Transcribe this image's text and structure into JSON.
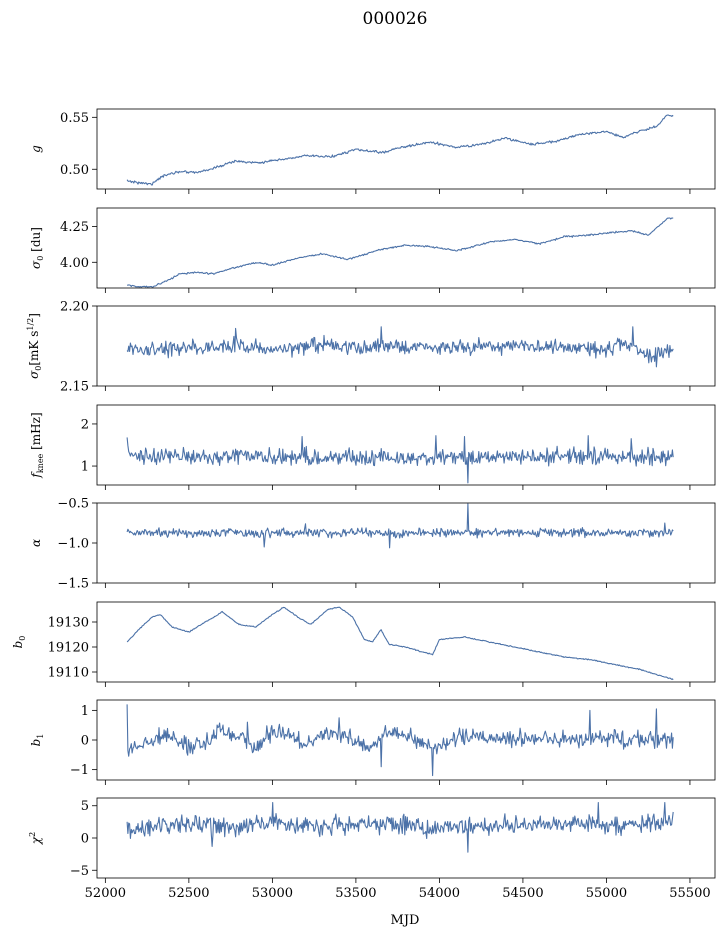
{
  "figure": {
    "title": "000026",
    "xlabel": "MJD"
  },
  "colors": {
    "series": "#4c72a8",
    "axes": "#000000",
    "background": "#ffffff"
  },
  "chart_data": [
    {
      "type": "line",
      "ylabel": "g",
      "xlim": [
        51950,
        55650
      ],
      "ylim": [
        0.481,
        0.558
      ],
      "yticks": [
        0.5,
        0.55
      ],
      "ytick_labels": [
        "0.50",
        "0.55"
      ],
      "show_xtick_labels": false,
      "x_start": 52130,
      "x_end": 55400,
      "knots": [
        [
          52130,
          0.489
        ],
        [
          52200,
          0.487
        ],
        [
          52280,
          0.486
        ],
        [
          52350,
          0.494
        ],
        [
          52450,
          0.498
        ],
        [
          52550,
          0.497
        ],
        [
          52650,
          0.501
        ],
        [
          52780,
          0.508
        ],
        [
          52900,
          0.506
        ],
        [
          53050,
          0.509
        ],
        [
          53200,
          0.513
        ],
        [
          53350,
          0.512
        ],
        [
          53500,
          0.519
        ],
        [
          53650,
          0.516
        ],
        [
          53800,
          0.522
        ],
        [
          53950,
          0.526
        ],
        [
          54100,
          0.521
        ],
        [
          54250,
          0.524
        ],
        [
          54400,
          0.53
        ],
        [
          54550,
          0.524
        ],
        [
          54700,
          0.527
        ],
        [
          54850,
          0.534
        ],
        [
          55000,
          0.536
        ],
        [
          55100,
          0.531
        ],
        [
          55200,
          0.537
        ],
        [
          55300,
          0.541
        ],
        [
          55360,
          0.552
        ],
        [
          55400,
          0.551
        ]
      ],
      "noise": 0.0008,
      "spikes": []
    },
    {
      "type": "line",
      "ylabel": "σ0 [du]",
      "xlim": [
        51950,
        55650
      ],
      "ylim": [
        3.82,
        4.38
      ],
      "yticks": [
        4.0,
        4.25
      ],
      "ytick_labels": [
        "4.00",
        "4.25"
      ],
      "show_xtick_labels": false,
      "x_start": 52130,
      "x_end": 55400,
      "knots": [
        [
          52130,
          3.84
        ],
        [
          52200,
          3.83
        ],
        [
          52280,
          3.83
        ],
        [
          52350,
          3.86
        ],
        [
          52450,
          3.92
        ],
        [
          52550,
          3.93
        ],
        [
          52650,
          3.92
        ],
        [
          52800,
          3.97
        ],
        [
          52900,
          4.0
        ],
        [
          53000,
          3.98
        ],
        [
          53150,
          4.03
        ],
        [
          53300,
          4.06
        ],
        [
          53450,
          4.02
        ],
        [
          53650,
          4.09
        ],
        [
          53800,
          4.12
        ],
        [
          53950,
          4.11
        ],
        [
          54100,
          4.08
        ],
        [
          54300,
          4.14
        ],
        [
          54450,
          4.16
        ],
        [
          54600,
          4.13
        ],
        [
          54750,
          4.18
        ],
        [
          54900,
          4.19
        ],
        [
          55050,
          4.21
        ],
        [
          55150,
          4.22
        ],
        [
          55250,
          4.19
        ],
        [
          55330,
          4.27
        ],
        [
          55370,
          4.31
        ],
        [
          55400,
          4.31
        ]
      ],
      "noise": 0.004,
      "spikes": []
    },
    {
      "type": "line",
      "ylabel": "σ0[mK s1/2]",
      "xlim": [
        51950,
        55650
      ],
      "ylim": [
        2.15,
        2.2
      ],
      "yticks": [
        2.15,
        2.2
      ],
      "ytick_labels": [
        "2.15",
        "2.20"
      ],
      "show_xtick_labels": false,
      "x_start": 52130,
      "x_end": 55400,
      "knots": [
        [
          52130,
          2.172
        ],
        [
          52400,
          2.173
        ],
        [
          52700,
          2.176
        ],
        [
          53000,
          2.173
        ],
        [
          53300,
          2.176
        ],
        [
          53600,
          2.174
        ],
        [
          53900,
          2.175
        ],
        [
          54200,
          2.174
        ],
        [
          54500,
          2.175
        ],
        [
          54800,
          2.174
        ],
        [
          55000,
          2.173
        ],
        [
          55100,
          2.177
        ],
        [
          55250,
          2.169
        ],
        [
          55400,
          2.172
        ]
      ],
      "noise": 0.0032,
      "spikes": [
        [
          52780,
          2.186
        ],
        [
          53650,
          2.187
        ],
        [
          55160,
          2.187
        ],
        [
          55300,
          2.162
        ]
      ]
    },
    {
      "type": "line",
      "ylabel": "fknee [mHz]",
      "xlim": [
        51950,
        55650
      ],
      "ylim": [
        0.55,
        2.45
      ],
      "yticks": [
        1,
        2
      ],
      "ytick_labels": [
        "1",
        "2"
      ],
      "show_xtick_labels": false,
      "x_start": 52130,
      "x_end": 55400,
      "knots": [
        [
          52130,
          1.25
        ],
        [
          52800,
          1.22
        ],
        [
          53500,
          1.2
        ],
        [
          54200,
          1.21
        ],
        [
          54900,
          1.23
        ],
        [
          55400,
          1.2
        ]
      ],
      "noise": 0.14,
      "spikes": [
        [
          52130,
          1.68
        ],
        [
          53180,
          1.7
        ],
        [
          53980,
          1.72
        ],
        [
          54170,
          0.6
        ],
        [
          54150,
          1.7
        ],
        [
          54890,
          1.72
        ],
        [
          55150,
          1.65
        ]
      ]
    },
    {
      "type": "line",
      "ylabel": "α",
      "xlim": [
        51950,
        55650
      ],
      "ylim": [
        -1.5,
        -0.5
      ],
      "yticks": [
        -1.5,
        -1.0,
        -0.5
      ],
      "ytick_labels": [
        "−1.5",
        "−1.0",
        "−0.5"
      ],
      "show_xtick_labels": false,
      "x_start": 52130,
      "x_end": 55400,
      "knots": [
        [
          52130,
          -0.88
        ],
        [
          52800,
          -0.87
        ],
        [
          53500,
          -0.88
        ],
        [
          54200,
          -0.87
        ],
        [
          54900,
          -0.87
        ],
        [
          55400,
          -0.88
        ]
      ],
      "noise": 0.04,
      "spikes": [
        [
          54170,
          -0.51
        ],
        [
          53200,
          -0.76
        ],
        [
          53700,
          -1.06
        ],
        [
          52950,
          -1.05
        ],
        [
          55350,
          -0.75
        ]
      ]
    },
    {
      "type": "line",
      "ylabel": "b0",
      "xlim": [
        51950,
        55650
      ],
      "ylim": [
        19106,
        19138
      ],
      "yticks": [
        19110,
        19120,
        19130
      ],
      "ytick_labels": [
        "19110",
        "19120",
        "19130"
      ],
      "show_xtick_labels": false,
      "x_start": 52130,
      "x_end": 55400,
      "knots": [
        [
          52130,
          19122
        ],
        [
          52200,
          19127
        ],
        [
          52280,
          19132
        ],
        [
          52330,
          19133
        ],
        [
          52400,
          19128
        ],
        [
          52500,
          19126
        ],
        [
          52600,
          19130
        ],
        [
          52700,
          19134
        ],
        [
          52800,
          19129
        ],
        [
          52900,
          19128
        ],
        [
          53000,
          19133
        ],
        [
          53070,
          19136
        ],
        [
          53150,
          19132
        ],
        [
          53230,
          19129
        ],
        [
          53330,
          19135
        ],
        [
          53400,
          19136
        ],
        [
          53480,
          19132
        ],
        [
          53550,
          19123
        ],
        [
          53600,
          19122
        ],
        [
          53650,
          19127
        ],
        [
          53700,
          19121
        ],
        [
          53800,
          19120
        ],
        [
          53900,
          19118
        ],
        [
          53960,
          19117
        ],
        [
          54000,
          19123
        ],
        [
          54150,
          19124
        ],
        [
          54300,
          19122
        ],
        [
          54450,
          19120
        ],
        [
          54600,
          19118
        ],
        [
          54750,
          19116
        ],
        [
          54900,
          19115
        ],
        [
          55050,
          19113
        ],
        [
          55200,
          19111
        ],
        [
          55300,
          19109
        ],
        [
          55400,
          19107
        ]
      ],
      "noise": 0.15,
      "spikes": []
    },
    {
      "type": "line",
      "ylabel": "b1",
      "xlim": [
        51950,
        55650
      ],
      "ylim": [
        -1.35,
        1.35
      ],
      "yticks": [
        -1,
        0,
        1
      ],
      "ytick_labels": [
        "−1",
        "0",
        "1"
      ],
      "show_xtick_labels": false,
      "x_start": 52130,
      "x_end": 55400,
      "knots": [
        [
          52130,
          -0.3
        ],
        [
          52200,
          -0.2
        ],
        [
          52300,
          0.1
        ],
        [
          52400,
          0.15
        ],
        [
          52500,
          -0.2
        ],
        [
          52600,
          -0.1
        ],
        [
          52700,
          0.35
        ],
        [
          52800,
          0.1
        ],
        [
          52900,
          -0.25
        ],
        [
          53000,
          0.3
        ],
        [
          53100,
          0.2
        ],
        [
          53200,
          -0.2
        ],
        [
          53300,
          0.25
        ],
        [
          53400,
          0.2
        ],
        [
          53500,
          0.0
        ],
        [
          53600,
          -0.3
        ],
        [
          53700,
          0.3
        ],
        [
          53800,
          0.1
        ],
        [
          53900,
          -0.1
        ],
        [
          54000,
          -0.2
        ],
        [
          54100,
          0.1
        ],
        [
          54300,
          0.1
        ],
        [
          54500,
          0.05
        ],
        [
          54700,
          0.05
        ],
        [
          54900,
          0.0
        ],
        [
          55100,
          0.05
        ],
        [
          55300,
          0.0
        ],
        [
          55400,
          0.05
        ]
      ],
      "noise": 0.2,
      "spikes": [
        [
          52130,
          1.2
        ],
        [
          53960,
          -1.2
        ],
        [
          53650,
          -0.9
        ],
        [
          54900,
          1.0
        ],
        [
          55300,
          1.05
        ],
        [
          52850,
          0.6
        ],
        [
          53400,
          0.75
        ]
      ]
    },
    {
      "type": "line",
      "ylabel": "χ2",
      "xlim": [
        51950,
        55650
      ],
      "ylim": [
        -6.2,
        6.2
      ],
      "yticks": [
        -5,
        0,
        5
      ],
      "ytick_labels": [
        "−5",
        "0",
        "5"
      ],
      "show_xtick_labels": true,
      "xticks": [
        52000,
        52500,
        53000,
        53500,
        54000,
        54500,
        55000,
        55500
      ],
      "xtick_labels": [
        "52000",
        "52500",
        "53000",
        "53500",
        "54000",
        "54500",
        "55000",
        "55500"
      ],
      "x_start": 52130,
      "x_end": 55400,
      "knots": [
        [
          52130,
          1.5
        ],
        [
          52400,
          2.2
        ],
        [
          52700,
          1.8
        ],
        [
          53000,
          2.2
        ],
        [
          53300,
          1.8
        ],
        [
          53600,
          2.3
        ],
        [
          53900,
          1.7
        ],
        [
          54200,
          1.8
        ],
        [
          54500,
          2.2
        ],
        [
          54800,
          1.9
        ],
        [
          55100,
          2.1
        ],
        [
          55400,
          2.5
        ]
      ],
      "noise": 1.05,
      "spikes": [
        [
          54170,
          -2.2
        ],
        [
          53000,
          5.5
        ],
        [
          54950,
          5.5
        ],
        [
          55350,
          5.5
        ],
        [
          52640,
          -1.3
        ]
      ]
    }
  ]
}
